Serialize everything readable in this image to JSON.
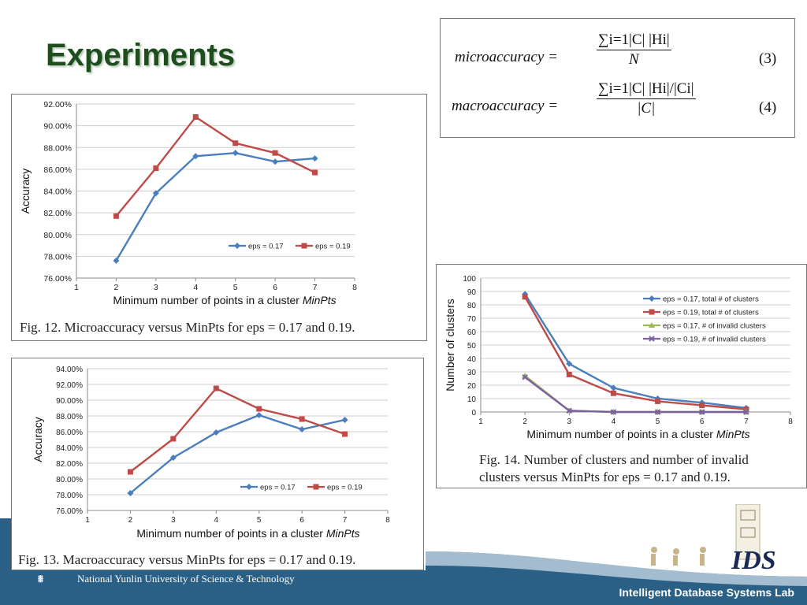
{
  "slide": {
    "title": "Experiments",
    "university": "National Yunlin University of Science & Technology",
    "lab": "Intelligent Database Systems Lab",
    "logo_text": "IDS"
  },
  "formulas": {
    "micro_lhs": "microaccuracy =",
    "micro_num": "∑i=1|C| |Hi|",
    "micro_den": "N",
    "micro_no": "(3)",
    "macro_lhs": "macroaccuracy =",
    "macro_num": "∑i=1|C| |Hi|/|Ci|",
    "macro_den": "|C|",
    "macro_no": "(4)"
  },
  "colors": {
    "blue": "#4a7ebf",
    "red": "#be4b48",
    "green": "#98b954",
    "purple": "#7d60a0",
    "title_green": "#1e4d1e",
    "footer_blue": "#2a5f86"
  },
  "chart_data": [
    {
      "type": "line",
      "caption": "Fig. 12.   Microaccuracy versus MinPts for eps = 0.17 and 0.19.",
      "xlabel": "Minimum number of points in a cluster MinPts",
      "ylabel": "Accuracy",
      "xlim": [
        1,
        8
      ],
      "ylim": [
        76,
        92
      ],
      "yticks": [
        "76.00%",
        "78.00%",
        "80.00%",
        "82.00%",
        "84.00%",
        "86.00%",
        "88.00%",
        "90.00%",
        "92.00%"
      ],
      "xticks": [
        "1",
        "2",
        "3",
        "4",
        "5",
        "6",
        "7",
        "8"
      ],
      "x": [
        2,
        3,
        4,
        5,
        6,
        7
      ],
      "series": [
        {
          "name": "eps = 0.17",
          "color": "#4a7ebf",
          "marker": "diamond",
          "values": [
            77.6,
            83.8,
            87.2,
            87.5,
            86.7,
            87.0
          ]
        },
        {
          "name": "eps = 0.19",
          "color": "#be4b48",
          "marker": "square",
          "values": [
            81.7,
            86.1,
            90.8,
            88.4,
            87.5,
            85.7
          ]
        }
      ],
      "legend": "inside-bottom-right"
    },
    {
      "type": "line",
      "caption": "Fig. 13.   Macroaccuracy versus MinPts for eps = 0.17 and 0.19.",
      "xlabel": "Minimum number of points in a cluster MinPts",
      "ylabel": "Accuracy",
      "xlim": [
        1,
        8
      ],
      "ylim": [
        76,
        94
      ],
      "yticks": [
        "76.00%",
        "78.00%",
        "80.00%",
        "82.00%",
        "84.00%",
        "86.00%",
        "88.00%",
        "90.00%",
        "92.00%",
        "94.00%"
      ],
      "xticks": [
        "1",
        "2",
        "3",
        "4",
        "5",
        "6",
        "7",
        "8"
      ],
      "x": [
        2,
        3,
        4,
        5,
        6,
        7
      ],
      "series": [
        {
          "name": "eps = 0.17",
          "color": "#4a7ebf",
          "marker": "diamond",
          "values": [
            78.2,
            82.7,
            85.9,
            88.1,
            86.3,
            87.5
          ]
        },
        {
          "name": "eps = 0.19",
          "color": "#be4b48",
          "marker": "square",
          "values": [
            80.9,
            85.1,
            91.5,
            88.9,
            87.6,
            85.7
          ]
        }
      ],
      "legend": "inside-bottom-right"
    },
    {
      "type": "line",
      "caption_l1": "Fig. 14.   Number of clusters and number of invalid",
      "caption_l2": "clusters versus MinPts for eps = 0.17 and 0.19.",
      "xlabel": "Minimum number of points in a cluster MinPts",
      "ylabel": "Number of clusters",
      "xlim": [
        1,
        8
      ],
      "ylim": [
        0,
        100
      ],
      "yticks": [
        "0",
        "10",
        "20",
        "30",
        "40",
        "50",
        "60",
        "70",
        "80",
        "90",
        "100"
      ],
      "xticks": [
        "1",
        "2",
        "3",
        "4",
        "5",
        "6",
        "7",
        "8"
      ],
      "x": [
        2,
        3,
        4,
        5,
        6,
        7
      ],
      "series": [
        {
          "name": "eps = 0.17, total # of clusters",
          "color": "#4a7ebf",
          "marker": "diamond",
          "values": [
            88,
            36,
            18,
            10,
            7,
            3
          ]
        },
        {
          "name": "eps = 0.19, total # of clusters",
          "color": "#be4b48",
          "marker": "square",
          "values": [
            86,
            28,
            14,
            8,
            5,
            2
          ]
        },
        {
          "name": "eps = 0.17, # of invalid clusters",
          "color": "#98b954",
          "marker": "triangle",
          "values": [
            27,
            1,
            0,
            0,
            0,
            0
          ]
        },
        {
          "name": "eps = 0.19, # of invalid clusters",
          "color": "#7d60a0",
          "marker": "x",
          "values": [
            26,
            1,
            0,
            0,
            0,
            0
          ]
        }
      ],
      "legend": "inside-top-right"
    }
  ]
}
